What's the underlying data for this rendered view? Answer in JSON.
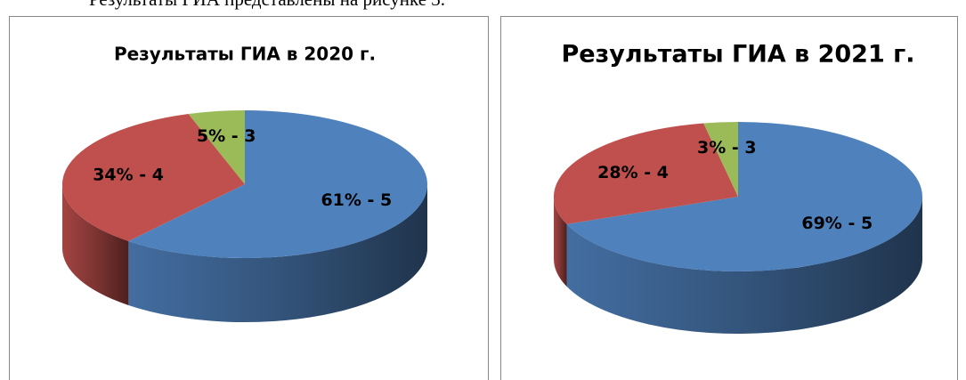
{
  "caption": "Результаты ГИА представлены на рисунке 3.",
  "chart_data": [
    {
      "type": "pie3d",
      "title": "Результаты ГИА в 2020 г.",
      "values": [
        61,
        34,
        5
      ],
      "value_labels": [
        "61% - 5",
        "34% - 4",
        "5% - 3"
      ],
      "colors": [
        "#4f81bd",
        "#c0504d",
        "#9bbb59"
      ]
    },
    {
      "type": "pie3d",
      "title": "Результаты ГИА в 2021 г.",
      "values": [
        69,
        28,
        3
      ],
      "value_labels": [
        "69% - 5",
        "28% - 4",
        "3% - 3"
      ],
      "colors": [
        "#4f81bd",
        "#c0504d",
        "#9bbb59"
      ]
    }
  ]
}
